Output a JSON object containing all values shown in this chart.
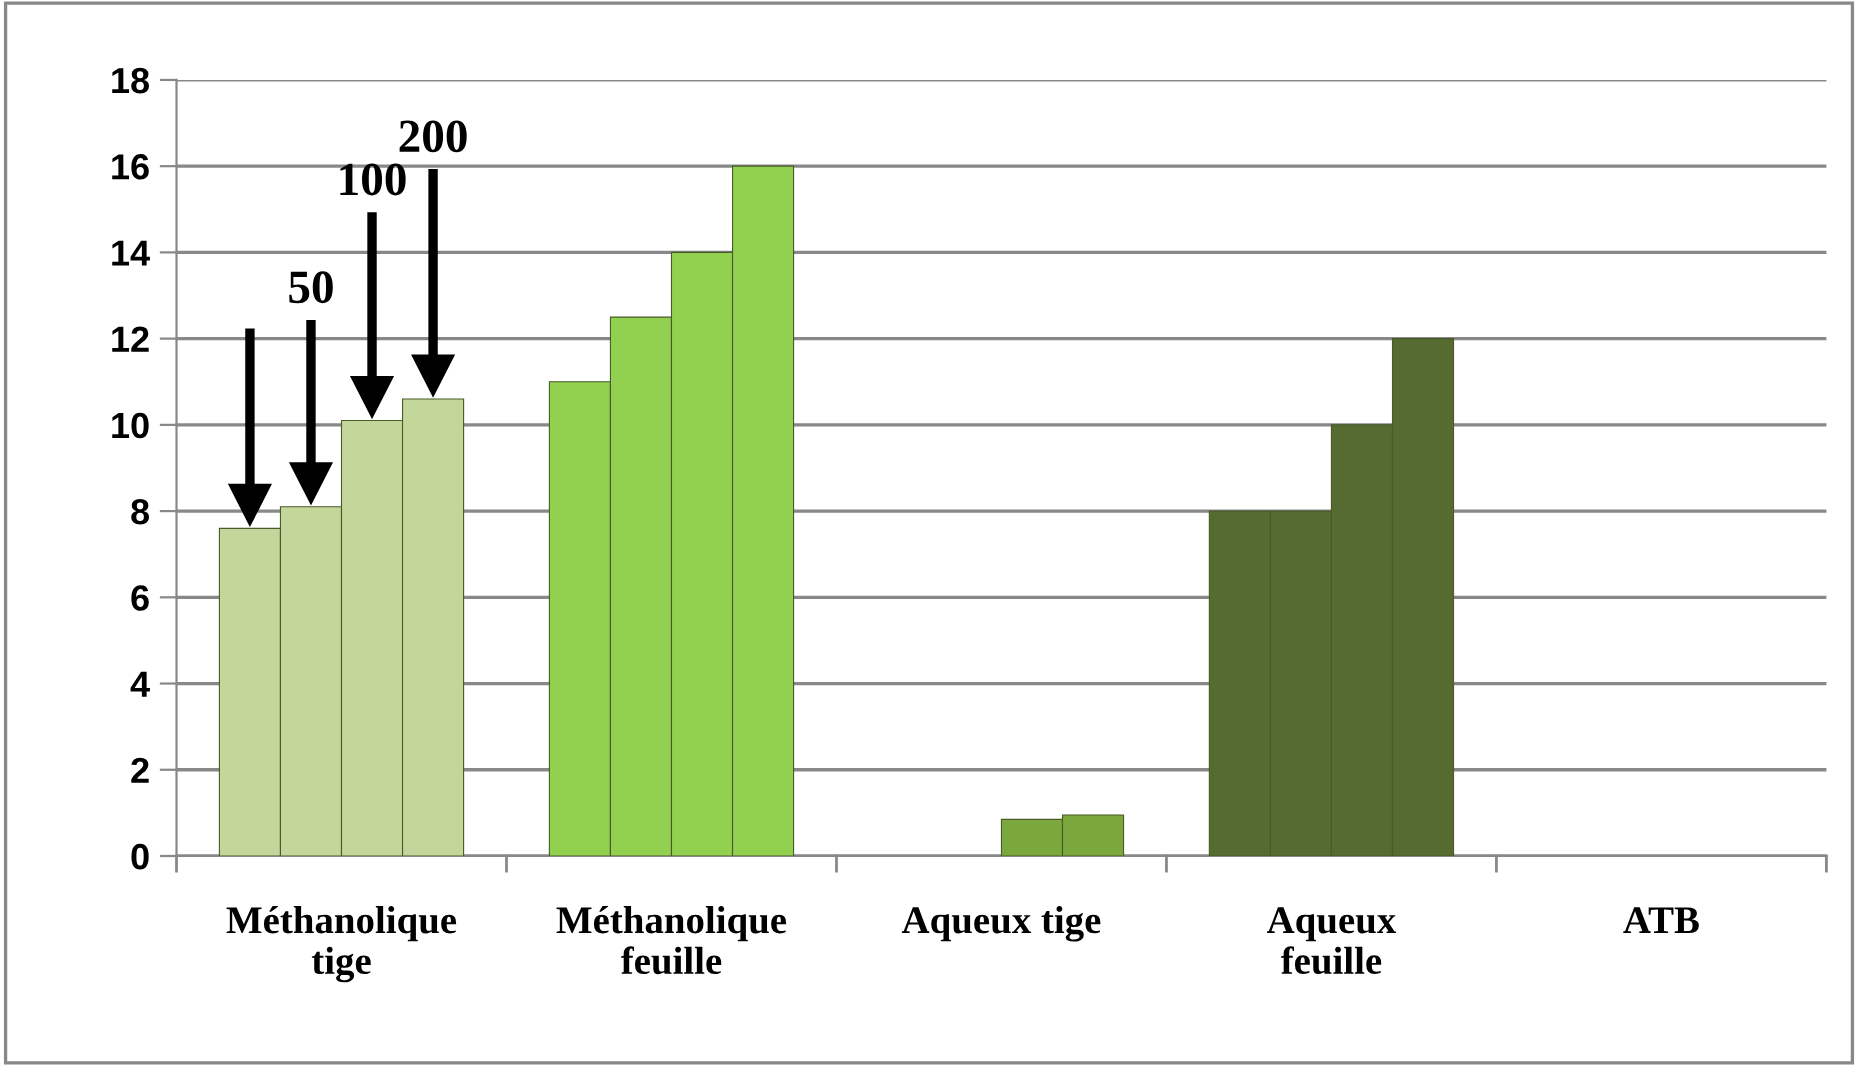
{
  "chart_data": {
    "type": "bar",
    "categories": [
      "Méthanolique\ntige",
      "Méthanolique\nfeuille",
      "Aqueux tige",
      "Aqueux\nfeuille",
      "ATB"
    ],
    "series": [
      {
        "colors": [
          "#c4d79b",
          "#92d050",
          "#7aa83c",
          "#556b2f",
          "#556b2f"
        ],
        "values": [
          7.6,
          11,
          null,
          8,
          null
        ]
      },
      {
        "colors": [
          "#c4d79b",
          "#92d050",
          "#7aa83c",
          "#556b2f",
          "#556b2f"
        ],
        "values": [
          8.1,
          12.5,
          null,
          8,
          null
        ]
      },
      {
        "colors": [
          "#c4d79b",
          "#92d050",
          "#7aa83c",
          "#556b2f",
          "#556b2f"
        ],
        "values": [
          10.1,
          14,
          0.85,
          10,
          null
        ]
      },
      {
        "colors": [
          "#c4d79b",
          "#92d050",
          "#7aa83c",
          "#556b2f",
          "#556b2f"
        ],
        "values": [
          10.6,
          16,
          0.95,
          12,
          null
        ]
      }
    ],
    "annotations": [
      "50",
      "100",
      "200"
    ],
    "ylim": [
      0,
      18
    ],
    "yticks": [
      0,
      2,
      4,
      6,
      8,
      10,
      12,
      14,
      16,
      18
    ],
    "grid": "y",
    "legend": false
  }
}
